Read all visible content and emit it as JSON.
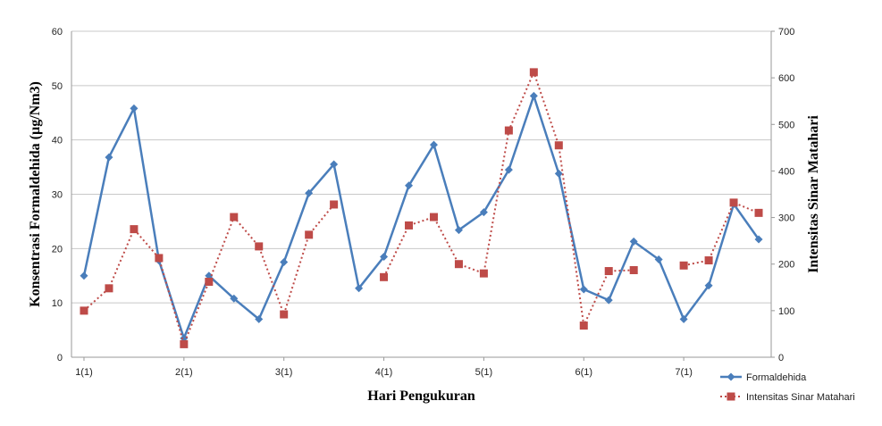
{
  "chart_data": {
    "type": "line",
    "xlabel": "Hari Pengukuran",
    "ylabel_left": "Konsentrasi Formaldehida  (µg/Nm3)",
    "ylabel_right": "Intensitas Sinar Matahari",
    "ylim_left": [
      0,
      60
    ],
    "ylim_right": [
      0,
      700
    ],
    "yticks_left": [
      0,
      10,
      20,
      30,
      40,
      50,
      60
    ],
    "yticks_right": [
      0,
      100,
      200,
      300,
      400,
      500,
      600,
      700
    ],
    "xtick_labels": [
      "1(1)",
      "2(1)",
      "3(1)",
      "4(1)",
      "5(1)",
      "6(1)",
      "7(1)"
    ],
    "xtick_positions": [
      1,
      5,
      9,
      13,
      17,
      21,
      25
    ],
    "x": [
      1,
      2,
      3,
      4,
      5,
      6,
      7,
      8,
      9,
      10,
      11,
      12,
      13,
      14,
      15,
      16,
      17,
      18,
      19,
      20,
      21,
      22,
      23,
      24,
      25,
      26,
      27,
      28
    ],
    "grid": true,
    "legend_position": "bottom-right",
    "series": [
      {
        "name": "Formaldehida",
        "axis": "left",
        "color": "#4a7ebb",
        "line_style": "solid",
        "marker": "diamond",
        "values": [
          15.0,
          36.8,
          45.8,
          17.8,
          3.5,
          15.0,
          10.8,
          7.0,
          17.5,
          30.2,
          35.5,
          12.7,
          18.5,
          31.6,
          39.1,
          23.4,
          26.7,
          34.5,
          48.1,
          33.8,
          12.5,
          10.5,
          21.3,
          18.0,
          7.0,
          13.2,
          28.2,
          21.7
        ]
      },
      {
        "name": "Intensitas Sinar Matahari",
        "axis": "right",
        "color": "#be4b48",
        "line_style": "dotted",
        "marker": "square",
        "values": [
          100,
          148,
          275,
          213,
          28,
          162,
          301,
          238,
          92,
          263,
          328,
          null,
          172,
          283,
          301,
          200,
          180,
          487,
          612,
          455,
          68,
          185,
          187,
          null,
          197,
          208,
          332,
          310
        ]
      }
    ]
  }
}
